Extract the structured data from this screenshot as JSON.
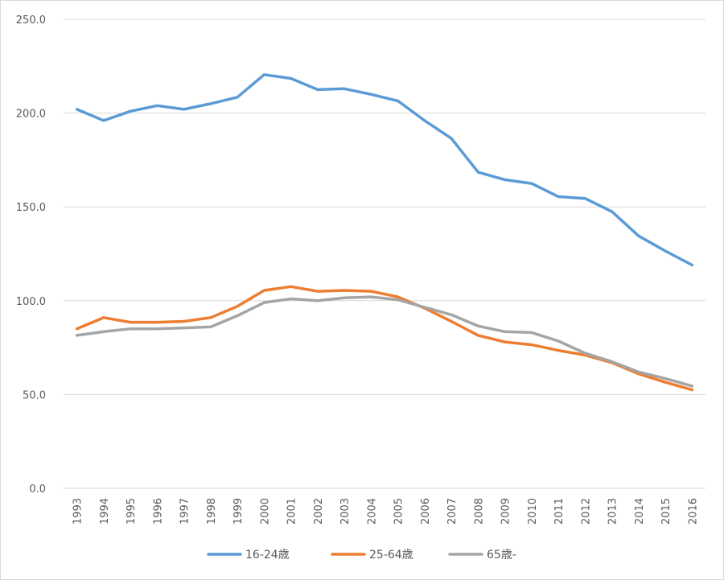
{
  "chart_data": {
    "type": "line",
    "title": "",
    "xlabel": "",
    "ylabel": "",
    "ylim": [
      0,
      250
    ],
    "y_ticks": [
      "0.0",
      "50.0",
      "100.0",
      "150.0",
      "200.0",
      "250.0"
    ],
    "grid": true,
    "legend_position": "bottom",
    "categories": [
      "1993",
      "1994",
      "1995",
      "1996",
      "1997",
      "1998",
      "1999",
      "2000",
      "2001",
      "2002",
      "2003",
      "2004",
      "2005",
      "2006",
      "2007",
      "2008",
      "2009",
      "2010",
      "2011",
      "2012",
      "2013",
      "2014",
      "2015",
      "2016"
    ],
    "series": [
      {
        "name": "16-24歳",
        "color": "#5b9bd5",
        "values": [
          202.0,
          196.0,
          201.0,
          204.0,
          202.0,
          205.0,
          208.5,
          220.5,
          218.5,
          212.5,
          213.0,
          210.0,
          206.5,
          196.0,
          186.5,
          168.5,
          164.5,
          162.5,
          155.5,
          154.5,
          147.5,
          134.5,
          126.5,
          119.0
        ]
      },
      {
        "name": "25-64歳",
        "color": "#ed7d31",
        "values": [
          85.0,
          91.0,
          88.5,
          88.5,
          89.0,
          91.0,
          97.0,
          105.5,
          107.5,
          105.0,
          105.5,
          105.0,
          102.0,
          96.0,
          89.0,
          81.5,
          78.0,
          76.5,
          73.5,
          71.0,
          67.0,
          61.0,
          56.5,
          52.5
        ]
      },
      {
        "name": "65歳-",
        "color": "#a5a5a5",
        "values": [
          81.5,
          83.5,
          85.0,
          85.0,
          85.5,
          86.0,
          92.0,
          99.0,
          101.0,
          100.0,
          101.5,
          102.0,
          100.5,
          96.5,
          92.5,
          86.5,
          83.5,
          83.0,
          78.5,
          72.0,
          67.5,
          62.0,
          58.5,
          54.5
        ]
      }
    ]
  }
}
